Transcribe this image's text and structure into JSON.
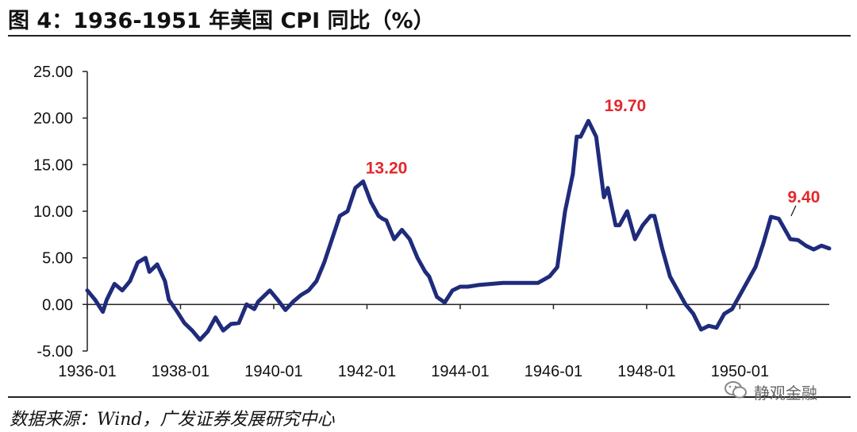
{
  "title": "图 4：1936-1951 年美国 CPI 同比（%）",
  "source": "数据来源：Wind，广发证券发展研究中心",
  "watermark": "静观金融",
  "watermark_icon": "wechat-icon",
  "colors": {
    "line": "#1f2b7b",
    "annotation": "#e3262b",
    "axis": "#222222"
  },
  "chart_data": {
    "type": "line",
    "title": "1936-1951 年美国 CPI 同比（%）",
    "xlabel": "",
    "ylabel": "",
    "ylim": [
      -5,
      25
    ],
    "yticks": [
      -5,
      0,
      5,
      10,
      15,
      20,
      25
    ],
    "ytick_labels": [
      "-5.00",
      "0.00",
      "5.00",
      "10.00",
      "15.00",
      "20.00",
      "25.00"
    ],
    "xtick_labels": [
      "1936-01",
      "1938-01",
      "1940-01",
      "1942-01",
      "1944-01",
      "1946-01",
      "1948-01",
      "1950-01"
    ],
    "x_range": [
      "1936-01",
      "1951-12"
    ],
    "grid": false,
    "legend": "none",
    "series": [
      {
        "x": [
          "1936-01",
          "1936-03",
          "1936-05",
          "1936-06",
          "1936-08",
          "1936-10",
          "1936-12",
          "1937-02",
          "1937-04",
          "1937-05",
          "1937-07",
          "1937-09",
          "1937-10",
          "1937-12",
          "1938-02",
          "1938-04",
          "1938-06",
          "1938-08",
          "1938-10",
          "1938-12",
          "1939-02",
          "1939-04",
          "1939-06",
          "1939-08",
          "1939-09",
          "1939-12",
          "1940-02",
          "1940-04",
          "1940-06",
          "1940-08",
          "1940-10",
          "1940-12",
          "1941-02",
          "1941-04",
          "1941-06",
          "1941-08",
          "1941-10",
          "1941-12",
          "1942-02",
          "1942-04",
          "1942-05",
          "1942-06",
          "1942-08",
          "1942-10",
          "1942-12",
          "1943-02",
          "1943-04",
          "1943-05",
          "1943-07",
          "1943-09",
          "1943-11",
          "1944-01",
          "1944-03",
          "1944-06",
          "1944-09",
          "1944-12",
          "1945-03",
          "1945-06",
          "1945-09",
          "1945-12",
          "1946-02",
          "1946-04",
          "1946-06",
          "1946-07",
          "1946-08",
          "1946-10",
          "1946-12",
          "1947-02",
          "1947-03",
          "1947-05",
          "1947-06",
          "1947-08",
          "1947-10",
          "1947-12",
          "1948-02",
          "1948-03",
          "1948-05",
          "1948-07",
          "1948-09",
          "1948-11",
          "1949-01",
          "1949-03",
          "1949-05",
          "1949-07",
          "1949-09",
          "1949-11",
          "1950-01",
          "1950-03",
          "1950-05",
          "1950-07",
          "1950-09",
          "1950-11",
          "1951-02",
          "1951-04",
          "1951-06",
          "1951-08",
          "1951-10",
          "1951-12"
        ],
        "values": [
          1.5,
          0.5,
          -0.8,
          0.5,
          2.2,
          1.5,
          2.5,
          4.5,
          5.0,
          3.5,
          4.3,
          2.5,
          0.5,
          -0.7,
          -2.0,
          -2.8,
          -3.8,
          -2.9,
          -1.4,
          -2.8,
          -2.1,
          -2.0,
          0.0,
          -0.5,
          0.3,
          1.5,
          0.5,
          -0.6,
          0.3,
          1.0,
          1.5,
          2.5,
          4.5,
          7.0,
          9.5,
          10.0,
          12.5,
          13.2,
          11.0,
          9.5,
          9.2,
          9.0,
          7.0,
          8.0,
          7.0,
          5.0,
          3.5,
          3.0,
          0.8,
          0.2,
          1.5,
          1.9,
          1.9,
          2.1,
          2.2,
          2.3,
          2.3,
          2.3,
          2.3,
          3.0,
          4.0,
          10.0,
          14.0,
          18.0,
          18.0,
          19.7,
          18.0,
          11.5,
          12.5,
          8.5,
          8.5,
          10.0,
          7.0,
          8.5,
          9.5,
          9.5,
          6.0,
          3.0,
          1.5,
          0.0,
          -1.0,
          -2.7,
          -2.3,
          -2.5,
          -1.0,
          -0.5,
          1.0,
          2.5,
          4.0,
          6.5,
          9.4,
          9.2,
          7.0,
          6.9,
          6.3,
          5.9,
          6.3,
          6.0
        ]
      }
    ],
    "annotations": [
      {
        "label": "13.20",
        "x": "1942-05",
        "y": 13.2
      },
      {
        "label": "19.70",
        "x": "1947-03",
        "y": 19.7
      },
      {
        "label": "9.40",
        "x": "1951-03",
        "y": 9.4
      }
    ]
  }
}
